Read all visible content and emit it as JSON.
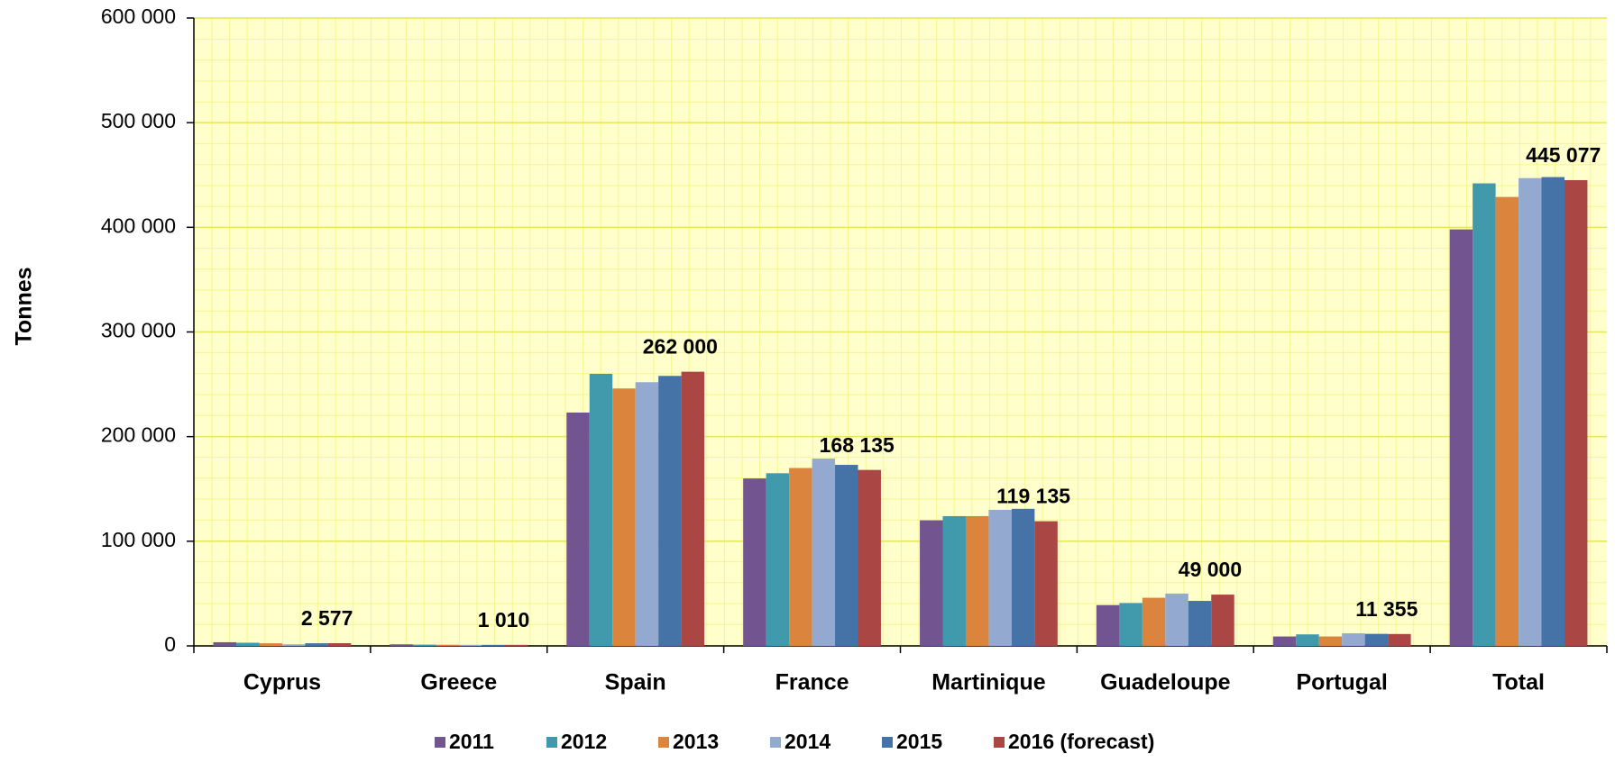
{
  "chart_data": {
    "type": "bar",
    "y_label": "Tonnes",
    "categories": [
      "Cyprus",
      "Greece",
      "Spain",
      "France",
      "Martinique",
      "Guadeloupe",
      "Portugal",
      "Total"
    ],
    "series": [
      {
        "name": "2011",
        "color": "#725491",
        "values": [
          3500,
          1500,
          223000,
          160000,
          120000,
          39000,
          9000,
          398000
        ]
      },
      {
        "name": "2012",
        "color": "#4199ac",
        "values": [
          3000,
          1200,
          260000,
          165000,
          124000,
          41000,
          11000,
          442000
        ]
      },
      {
        "name": "2013",
        "color": "#db843d",
        "values": [
          2500,
          1100,
          246000,
          170000,
          124000,
          46000,
          9000,
          429000
        ]
      },
      {
        "name": "2014",
        "color": "#93a9cf",
        "values": [
          1500,
          1000,
          252000,
          179000,
          130000,
          50000,
          12000,
          447000
        ]
      },
      {
        "name": "2015",
        "color": "#4572a7",
        "values": [
          2500,
          1000,
          258000,
          173000,
          131000,
          43000,
          11500,
          448000
        ]
      },
      {
        "name": "2016 (forecast)",
        "color": "#aa4643",
        "values": [
          2577,
          1010,
          262000,
          168135,
          119135,
          49000,
          11355,
          445077
        ],
        "value_labels": [
          "2 577",
          "1 010",
          "262 000",
          "168 135",
          "119 135",
          "49 000",
          "11 355",
          "445 077"
        ]
      }
    ],
    "ylim": [
      0,
      600000
    ],
    "yticks": [
      0,
      {
        "value": 100000,
        "label": "100 000"
      },
      {
        "value": 200000,
        "label": "200 000"
      },
      {
        "value": 300000,
        "label": "300 000"
      },
      {
        "value": 400000,
        "label": "400 000"
      },
      {
        "value": 500000,
        "label": "500 000"
      },
      {
        "value": 600000,
        "label": "600 000"
      }
    ],
    "grid": true,
    "legend": "bottom"
  }
}
